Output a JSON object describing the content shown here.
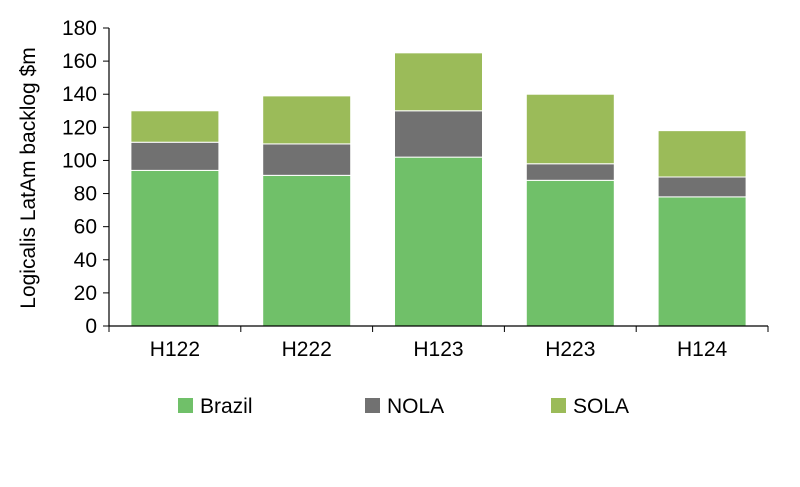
{
  "chart_data": {
    "type": "bar",
    "stacked": true,
    "title": "",
    "xlabel": "",
    "ylabel": "Logicalis LatAm backlog $m",
    "ylim": [
      0,
      180
    ],
    "yticks": [
      0,
      20,
      40,
      60,
      80,
      100,
      120,
      140,
      160,
      180
    ],
    "grid": false,
    "legend_position": "bottom",
    "categories": [
      "H122",
      "H222",
      "H123",
      "H223",
      "H124"
    ],
    "series": [
      {
        "name": "Brazil",
        "color": "#70c069",
        "values": [
          94,
          91,
          102,
          88,
          78
        ]
      },
      {
        "name": "NOLA",
        "color": "#717171",
        "values": [
          17,
          19,
          28,
          10,
          12
        ]
      },
      {
        "name": "SOLA",
        "color": "#9bbb59",
        "values": [
          19,
          29,
          35,
          42,
          28
        ]
      }
    ]
  }
}
